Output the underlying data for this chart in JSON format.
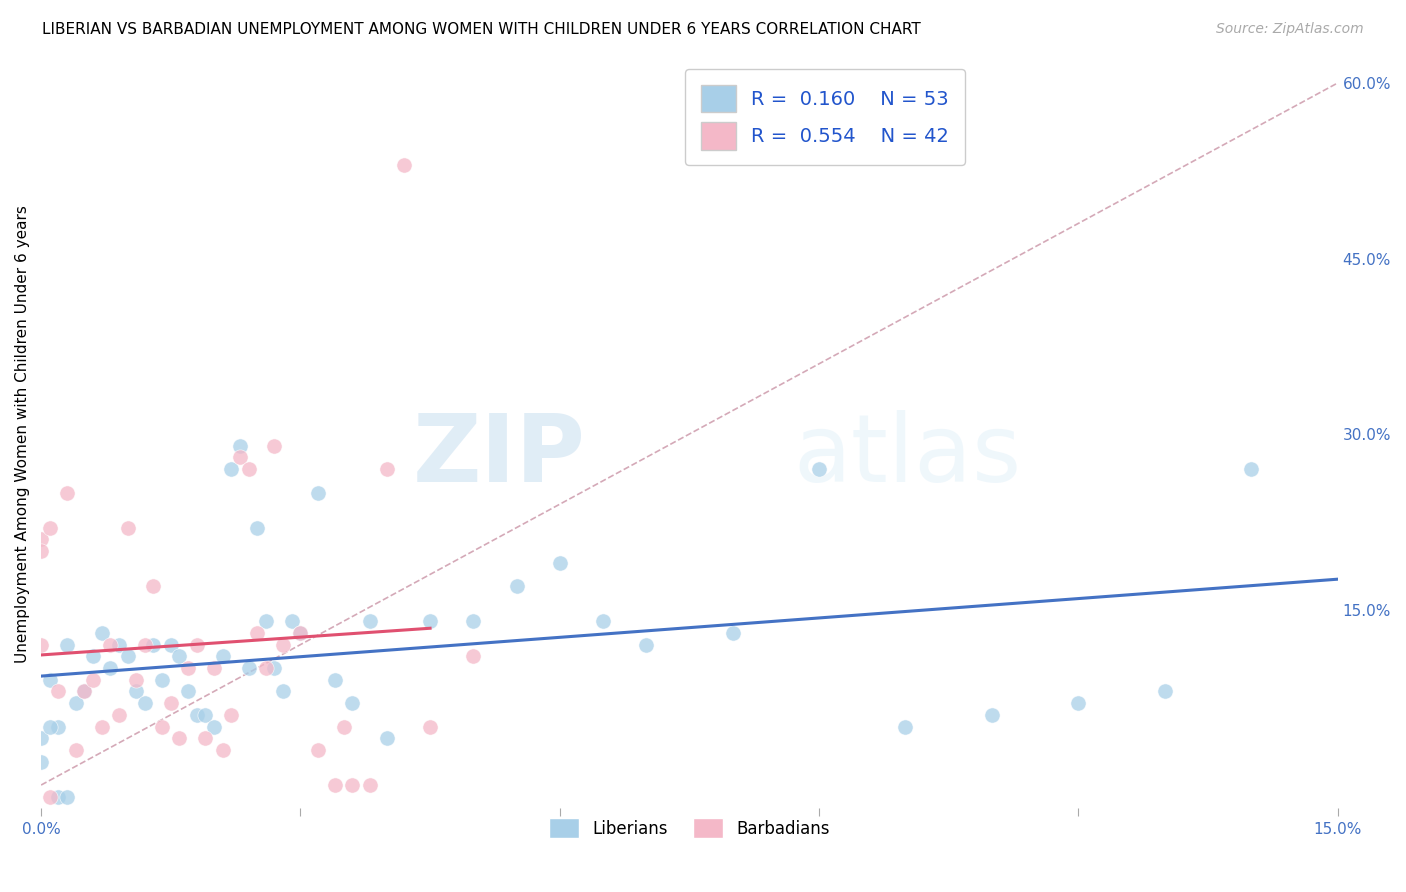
{
  "title": "LIBERIAN VS BARBADIAN UNEMPLOYMENT AMONG WOMEN WITH CHILDREN UNDER 6 YEARS CORRELATION CHART",
  "source": "Source: ZipAtlas.com",
  "ylabel": "Unemployment Among Women with Children Under 6 years",
  "xlim": [
    0.0,
    0.15
  ],
  "ylim": [
    -0.02,
    0.62
  ],
  "xticks": [
    0.0,
    0.03,
    0.06,
    0.09,
    0.12,
    0.15
  ],
  "xtick_labels": [
    "0.0%",
    "",
    "",
    "",
    "",
    "15.0%"
  ],
  "yticks_right": [
    0.0,
    0.15,
    0.3,
    0.45,
    0.6
  ],
  "ytick_labels_right": [
    "",
    "15.0%",
    "30.0%",
    "45.0%",
    "60.0%"
  ],
  "liberian_color": "#a8cfe8",
  "barbadian_color": "#f4b8c8",
  "liberian_line_color": "#4472c4",
  "barbadian_line_color": "#e05070",
  "liberian_R": 0.16,
  "liberian_N": 53,
  "barbadian_R": 0.554,
  "barbadian_N": 42,
  "diagonal_color": "#d0a0b0",
  "watermark_zip": "ZIP",
  "watermark_atlas": "atlas",
  "liberian_x": [
    0.001,
    0.002,
    0.003,
    0.004,
    0.005,
    0.006,
    0.007,
    0.008,
    0.009,
    0.01,
    0.011,
    0.012,
    0.013,
    0.014,
    0.015,
    0.016,
    0.017,
    0.018,
    0.019,
    0.02,
    0.021,
    0.022,
    0.023,
    0.024,
    0.025,
    0.026,
    0.027,
    0.028,
    0.029,
    0.03,
    0.032,
    0.034,
    0.036,
    0.038,
    0.04,
    0.045,
    0.05,
    0.055,
    0.06,
    0.065,
    0.07,
    0.08,
    0.09,
    0.1,
    0.11,
    0.12,
    0.13,
    0.14,
    0.0,
    0.0,
    0.001,
    0.002,
    0.003
  ],
  "liberian_y": [
    0.09,
    0.05,
    0.12,
    0.07,
    0.08,
    0.11,
    0.13,
    0.1,
    0.12,
    0.11,
    0.08,
    0.07,
    0.12,
    0.09,
    0.12,
    0.11,
    0.08,
    0.06,
    0.06,
    0.05,
    0.11,
    0.27,
    0.29,
    0.1,
    0.22,
    0.14,
    0.1,
    0.08,
    0.14,
    0.13,
    0.25,
    0.09,
    0.07,
    0.14,
    0.04,
    0.14,
    0.14,
    0.17,
    0.19,
    0.14,
    0.12,
    0.13,
    0.27,
    0.05,
    0.06,
    0.07,
    0.08,
    0.27,
    0.04,
    0.02,
    0.05,
    -0.01,
    -0.01
  ],
  "barbadian_x": [
    0.0,
    0.0,
    0.001,
    0.002,
    0.003,
    0.004,
    0.005,
    0.006,
    0.007,
    0.008,
    0.009,
    0.01,
    0.011,
    0.012,
    0.013,
    0.014,
    0.015,
    0.016,
    0.017,
    0.018,
    0.019,
    0.02,
    0.021,
    0.022,
    0.023,
    0.024,
    0.025,
    0.026,
    0.027,
    0.028,
    0.03,
    0.032,
    0.034,
    0.035,
    0.036,
    0.038,
    0.04,
    0.042,
    0.045,
    0.05,
    0.0,
    0.001
  ],
  "barbadian_y": [
    0.12,
    0.21,
    0.22,
    0.08,
    0.25,
    0.03,
    0.08,
    0.09,
    0.05,
    0.12,
    0.06,
    0.22,
    0.09,
    0.12,
    0.17,
    0.05,
    0.07,
    0.04,
    0.1,
    0.12,
    0.04,
    0.1,
    0.03,
    0.06,
    0.28,
    0.27,
    0.13,
    0.1,
    0.29,
    0.12,
    0.13,
    0.03,
    0.0,
    0.05,
    0.0,
    0.0,
    0.27,
    0.53,
    0.05,
    0.11,
    0.2,
    -0.01
  ]
}
